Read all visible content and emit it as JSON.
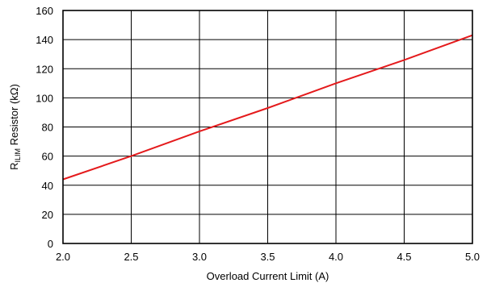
{
  "chart_data": {
    "type": "line",
    "xlabel": "Overload Current Limit (A)",
    "ylabel": {
      "prefix": "R",
      "subscript": "ILIM",
      "suffix": " Resistor (kΩ)"
    },
    "xlim": [
      2.0,
      5.0
    ],
    "ylim": [
      0,
      160
    ],
    "x_ticks": [
      2.0,
      2.5,
      3.0,
      3.5,
      4.0,
      4.5,
      5.0
    ],
    "x_tick_labels": [
      "2.0",
      "2.5",
      "3.0",
      "3.5",
      "4.0",
      "4.5",
      "5.0"
    ],
    "y_ticks": [
      0,
      20,
      40,
      60,
      80,
      100,
      120,
      140,
      160
    ],
    "y_tick_labels": [
      "0",
      "20",
      "40",
      "60",
      "80",
      "100",
      "120",
      "140",
      "160"
    ],
    "grid": true,
    "legend": "none",
    "series": [
      {
        "color": "#e41a1c",
        "x": [
          2.0,
          2.5,
          3.0,
          3.5,
          4.0,
          4.5,
          5.0
        ],
        "y": [
          44,
          60,
          77,
          93,
          110,
          126,
          143
        ]
      }
    ]
  }
}
